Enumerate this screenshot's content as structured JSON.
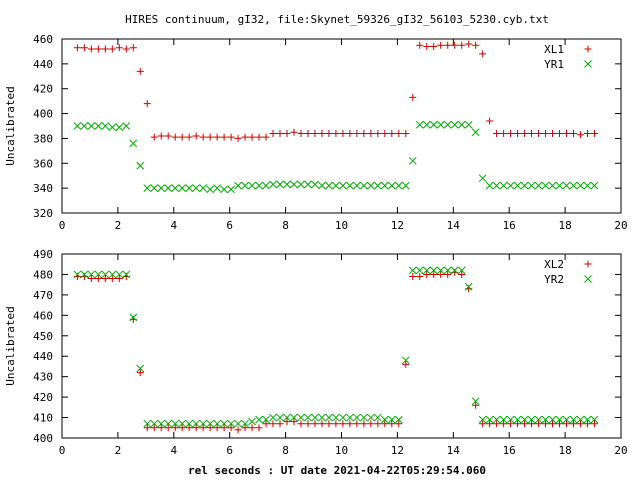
{
  "chart_data": [
    {
      "type": "scatter",
      "title": "HIRES continuum, gI32, file:Skynet_59326_gI32_56103_5230.cyb.txt",
      "xlabel": "",
      "ylabel": "Uncalibrated",
      "xlim": [
        0,
        20
      ],
      "ylim": [
        320,
        460
      ],
      "xticks": [
        0,
        2,
        4,
        6,
        8,
        10,
        12,
        14,
        16,
        18,
        20
      ],
      "yticks": [
        320,
        340,
        360,
        380,
        400,
        420,
        440,
        460
      ],
      "legend": "top-right",
      "series": [
        {
          "name": "XL1",
          "marker": "plus",
          "color": "#cc0000",
          "x": [
            0.55,
            0.8,
            1.05,
            1.3,
            1.55,
            1.8,
            2.05,
            2.3,
            2.55,
            2.8,
            3.05,
            3.3,
            3.55,
            3.8,
            4.05,
            4.3,
            4.55,
            4.8,
            5.05,
            5.3,
            5.55,
            5.8,
            6.05,
            6.3,
            6.55,
            6.8,
            7.05,
            7.3,
            7.55,
            7.8,
            8.05,
            8.3,
            8.55,
            8.8,
            9.05,
            9.3,
            9.55,
            9.8,
            10.05,
            10.3,
            10.55,
            10.8,
            11.05,
            11.3,
            11.55,
            11.8,
            12.05,
            12.3,
            12.55,
            12.8,
            13.05,
            13.3,
            13.55,
            13.8,
            14.05,
            14.3,
            14.55,
            14.8,
            15.05,
            15.3,
            15.55,
            15.8,
            16.05,
            16.3,
            16.55,
            16.8,
            17.05,
            17.3,
            17.55,
            17.8,
            18.05,
            18.3,
            18.55,
            18.8,
            19.05
          ],
          "y": [
            453,
            453,
            452,
            452,
            452,
            452,
            453,
            452,
            453,
            434,
            408,
            381,
            382,
            382,
            381,
            381,
            381,
            382,
            381,
            381,
            381,
            381,
            381,
            380,
            381,
            381,
            381,
            381,
            384,
            384,
            384,
            385,
            384,
            384,
            384,
            384,
            384,
            384,
            384,
            384,
            384,
            384,
            384,
            384,
            384,
            384,
            384,
            384,
            413,
            455,
            454,
            454,
            455,
            455,
            455,
            455,
            456,
            455,
            448,
            394,
            384,
            384,
            384,
            384,
            384,
            384,
            384,
            384,
            384,
            384,
            384,
            384,
            383,
            384,
            384
          ]
        },
        {
          "name": "YR1",
          "marker": "cross",
          "color": "#00aa00",
          "x": [
            0.55,
            0.8,
            1.05,
            1.3,
            1.55,
            1.8,
            2.05,
            2.3,
            2.55,
            2.8,
            3.05,
            3.3,
            3.55,
            3.8,
            4.05,
            4.3,
            4.55,
            4.8,
            5.05,
            5.3,
            5.55,
            5.8,
            6.05,
            6.3,
            6.55,
            6.8,
            7.05,
            7.3,
            7.55,
            7.8,
            8.05,
            8.3,
            8.55,
            8.8,
            9.05,
            9.3,
            9.55,
            9.8,
            10.05,
            10.3,
            10.55,
            10.8,
            11.05,
            11.3,
            11.55,
            11.8,
            12.05,
            12.3,
            12.55,
            12.8,
            13.05,
            13.3,
            13.55,
            13.8,
            14.05,
            14.3,
            14.55,
            14.8,
            15.05,
            15.3,
            15.55,
            15.8,
            16.05,
            16.3,
            16.55,
            16.8,
            17.05,
            17.3,
            17.55,
            17.8,
            18.05,
            18.3,
            18.55,
            18.8,
            19.05
          ],
          "y": [
            390,
            390,
            390,
            390,
            390,
            389,
            389,
            390,
            376,
            358,
            340,
            340,
            340,
            340,
            340,
            340,
            340,
            340,
            340,
            339,
            340,
            339,
            339,
            342,
            342,
            342,
            342,
            342,
            343,
            343,
            343,
            343,
            343,
            343,
            343,
            342,
            342,
            342,
            342,
            342,
            342,
            342,
            342,
            342,
            342,
            342,
            342,
            342,
            362,
            391,
            391,
            391,
            391,
            391,
            391,
            391,
            391,
            385,
            348,
            342,
            342,
            342,
            342,
            342,
            342,
            342,
            342,
            342,
            342,
            342,
            342,
            342,
            342,
            342,
            342
          ]
        }
      ]
    },
    {
      "type": "scatter",
      "title": "",
      "xlabel": "rel seconds : UT date 2021-04-22T05:29:54.060",
      "ylabel": "Uncalibrated",
      "xlim": [
        0,
        20
      ],
      "ylim": [
        400,
        490
      ],
      "xticks": [
        0,
        2,
        4,
        6,
        8,
        10,
        12,
        14,
        16,
        18,
        20
      ],
      "yticks": [
        400,
        410,
        420,
        430,
        440,
        450,
        460,
        470,
        480,
        490
      ],
      "legend": "top-right",
      "series": [
        {
          "name": "XL2",
          "marker": "plus",
          "color": "#cc0000",
          "x": [
            0.55,
            0.8,
            1.05,
            1.3,
            1.55,
            1.8,
            2.05,
            2.3,
            2.55,
            2.8,
            3.05,
            3.3,
            3.55,
            3.8,
            4.05,
            4.3,
            4.55,
            4.8,
            5.05,
            5.3,
            5.55,
            5.8,
            6.05,
            6.3,
            6.55,
            6.8,
            7.05,
            7.3,
            7.55,
            7.8,
            8.05,
            8.3,
            8.55,
            8.8,
            9.05,
            9.3,
            9.55,
            9.8,
            10.05,
            10.3,
            10.55,
            10.8,
            11.05,
            11.3,
            11.55,
            11.8,
            12.05,
            12.3,
            12.55,
            12.8,
            13.05,
            13.3,
            13.55,
            13.8,
            14.05,
            14.3,
            14.55,
            14.8,
            15.05,
            15.3,
            15.55,
            15.8,
            16.05,
            16.3,
            16.55,
            16.8,
            17.05,
            17.3,
            17.55,
            17.8,
            18.05,
            18.3,
            18.55,
            18.8,
            19.05
          ],
          "y": [
            479,
            479,
            478,
            478,
            478,
            478,
            478,
            479,
            458,
            432,
            405,
            405,
            405,
            405,
            405,
            405,
            405,
            405,
            405,
            405,
            405,
            405,
            405,
            404,
            405,
            405,
            405,
            407,
            407,
            407,
            408,
            408,
            407,
            407,
            407,
            407,
            407,
            407,
            407,
            407,
            407,
            407,
            407,
            407,
            407,
            407,
            407,
            436,
            479,
            479,
            480,
            480,
            480,
            480,
            481,
            480,
            473,
            416,
            407,
            407,
            407,
            407,
            407,
            407,
            407,
            407,
            407,
            407,
            407,
            407,
            407,
            407,
            407,
            407,
            407
          ]
        },
        {
          "name": "YR2",
          "marker": "cross",
          "color": "#00aa00",
          "x": [
            0.55,
            0.8,
            1.05,
            1.3,
            1.55,
            1.8,
            2.05,
            2.3,
            2.55,
            2.8,
            3.05,
            3.3,
            3.55,
            3.8,
            4.05,
            4.3,
            4.55,
            4.8,
            5.05,
            5.3,
            5.55,
            5.8,
            6.05,
            6.3,
            6.55,
            6.8,
            7.05,
            7.3,
            7.55,
            7.8,
            8.05,
            8.3,
            8.55,
            8.8,
            9.05,
            9.3,
            9.55,
            9.8,
            10.05,
            10.3,
            10.55,
            10.8,
            11.05,
            11.3,
            11.55,
            11.8,
            12.05,
            12.3,
            12.55,
            12.8,
            13.05,
            13.3,
            13.55,
            13.8,
            14.05,
            14.3,
            14.55,
            14.8,
            15.05,
            15.3,
            15.55,
            15.8,
            16.05,
            16.3,
            16.55,
            16.8,
            17.05,
            17.3,
            17.55,
            17.8,
            18.05,
            18.3,
            18.55,
            18.8,
            19.05
          ],
          "y": [
            480,
            480,
            480,
            480,
            480,
            480,
            480,
            480,
            459,
            434,
            407,
            407,
            407,
            407,
            407,
            407,
            407,
            407,
            407,
            407,
            407,
            407,
            407,
            407,
            407,
            408,
            409,
            409,
            410,
            410,
            410,
            410,
            410,
            410,
            410,
            410,
            410,
            410,
            410,
            410,
            410,
            410,
            410,
            410,
            409,
            409,
            409,
            438,
            482,
            482,
            482,
            482,
            482,
            482,
            482,
            482,
            474,
            418,
            409,
            409,
            409,
            409,
            409,
            409,
            409,
            409,
            409,
            409,
            409,
            409,
            409,
            409,
            409,
            409,
            409
          ]
        }
      ]
    }
  ]
}
